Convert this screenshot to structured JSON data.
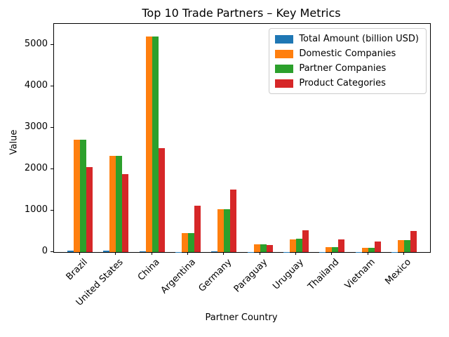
{
  "chart_data": {
    "type": "bar",
    "title": "Top 10 Trade Partners – Key Metrics",
    "xlabel": "Partner Country",
    "ylabel": "Value",
    "ylim": [
      0,
      5500
    ],
    "yticks": [
      0,
      1000,
      2000,
      3000,
      4000,
      5000
    ],
    "grid": false,
    "legend_position": "upper right",
    "categories": [
      "Brazil",
      "United States",
      "China",
      "Argentina",
      "Germany",
      "Paraguay",
      "Uruguay",
      "Thailand",
      "Vietnam",
      "Mexico"
    ],
    "series": [
      {
        "name": "Total Amount (billion USD)",
        "color": "#1f77b4",
        "values": [
          30,
          26,
          12,
          6,
          9,
          2,
          3,
          2,
          2,
          4
        ]
      },
      {
        "name": "Domestic Companies",
        "color": "#ff7f0e",
        "values": [
          2700,
          2320,
          5200,
          450,
          1030,
          190,
          305,
          115,
          110,
          280
        ]
      },
      {
        "name": "Partner Companies",
        "color": "#2ca02c",
        "values": [
          2700,
          2320,
          5200,
          450,
          1040,
          190,
          320,
          115,
          110,
          290
        ]
      },
      {
        "name": "Product Categories",
        "color": "#d62728",
        "values": [
          2050,
          1880,
          2500,
          1110,
          1500,
          170,
          530,
          300,
          260,
          500
        ]
      }
    ]
  }
}
